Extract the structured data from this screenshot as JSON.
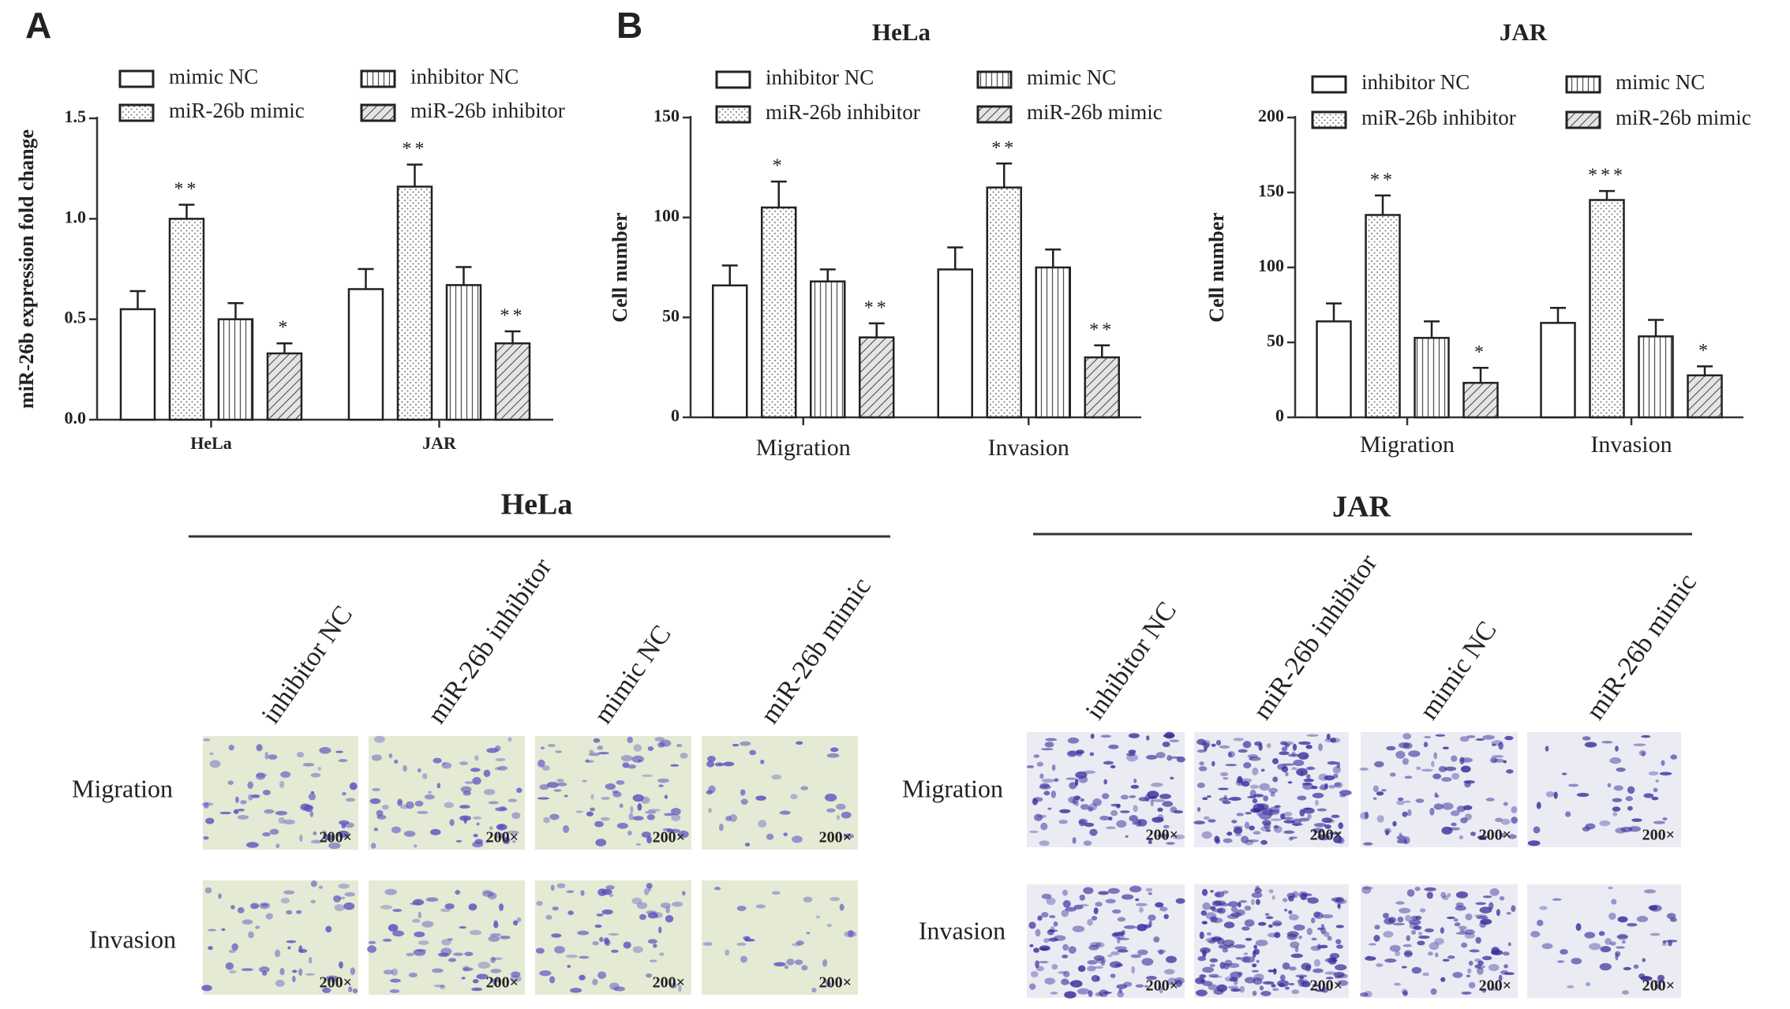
{
  "chart_data": [
    {
      "type": "bar",
      "panel": "A",
      "ylabel": "miR-26b expression fold change",
      "categories": [
        "HeLa",
        "JAR"
      ],
      "series": [
        {
          "name": "mimic NC",
          "pattern": "none",
          "color": "#222222",
          "values": [
            0.55,
            0.65
          ],
          "errors": [
            0.09,
            0.1
          ],
          "significance": [
            null,
            null
          ]
        },
        {
          "name": "miR-26b mimic",
          "pattern": "dots",
          "color": "#222222",
          "values": [
            1.0,
            1.16
          ],
          "errors": [
            0.07,
            0.11
          ],
          "significance": [
            "**",
            "**"
          ]
        },
        {
          "name": "inhibitor NC",
          "pattern": "vertical",
          "color": "#222222",
          "values": [
            0.5,
            0.67
          ],
          "errors": [
            0.08,
            0.09
          ],
          "significance": [
            null,
            null
          ]
        },
        {
          "name": "miR-26b inhibitor",
          "pattern": "diagonal",
          "color": "#222222",
          "values": [
            0.33,
            0.38
          ],
          "errors": [
            0.05,
            0.06
          ],
          "significance": [
            "*",
            "**"
          ]
        }
      ],
      "ylim": [
        0,
        1.5
      ],
      "yticks": [
        {
          "value": 0,
          "label": "0.0"
        },
        0.5,
        {
          "value": 1,
          "label": "1.0"
        },
        1.5
      ]
    },
    {
      "type": "bar",
      "panel": "B",
      "title": "HeLa",
      "ylabel": "Cell number",
      "categories": [
        "Migration",
        "Invasion"
      ],
      "series": [
        {
          "name": "inhibitor NC",
          "pattern": "none",
          "color": "#222222",
          "values": [
            66,
            74
          ],
          "errors": [
            10,
            11
          ],
          "significance": [
            null,
            null
          ]
        },
        {
          "name": "miR-26b inhibitor",
          "pattern": "dots",
          "color": "#222222",
          "values": [
            105,
            115
          ],
          "errors": [
            13,
            12
          ],
          "significance": [
            "*",
            "**"
          ]
        },
        {
          "name": "mimic NC",
          "pattern": "vertical",
          "color": "#222222",
          "values": [
            68,
            75
          ],
          "errors": [
            6,
            9
          ],
          "significance": [
            null,
            null
          ]
        },
        {
          "name": "miR-26b mimic",
          "pattern": "diagonal",
          "color": "#222222",
          "values": [
            40,
            30
          ],
          "errors": [
            7,
            6
          ],
          "significance": [
            "**",
            "**"
          ]
        }
      ],
      "ylim": [
        0,
        150
      ],
      "yticks": [
        0,
        50,
        100,
        150
      ]
    },
    {
      "type": "bar",
      "title": "JAR",
      "ylabel": "Cell number",
      "categories": [
        "Migration",
        "Invasion"
      ],
      "series": [
        {
          "name": "inhibitor NC",
          "pattern": "none",
          "color": "#222222",
          "values": [
            64,
            63
          ],
          "errors": [
            12,
            10
          ],
          "significance": [
            null,
            null
          ]
        },
        {
          "name": "miR-26b inhibitor",
          "pattern": "dots",
          "color": "#222222",
          "values": [
            135,
            145
          ],
          "errors": [
            13,
            6
          ],
          "significance": [
            "**",
            "***"
          ]
        },
        {
          "name": "mimic NC",
          "pattern": "vertical",
          "color": "#222222",
          "values": [
            53,
            54
          ],
          "errors": [
            11,
            11
          ],
          "significance": [
            null,
            null
          ]
        },
        {
          "name": "miR-26b mimic",
          "pattern": "diagonal",
          "color": "#222222",
          "values": [
            23,
            28
          ],
          "errors": [
            10,
            6
          ],
          "significance": [
            "*",
            "*"
          ]
        }
      ],
      "ylim": [
        0,
        200
      ],
      "yticks": [
        0,
        50,
        100,
        150,
        200
      ]
    }
  ],
  "micrographs": [
    {
      "title": "HeLa",
      "columns": [
        "inhibitor NC",
        "miR-26b inhibitor",
        "mimic NC",
        "miR-26b mimic"
      ],
      "rows": [
        "Migration",
        "Invasion"
      ]
    },
    {
      "title": "JAR",
      "columns": [
        "inhibitor NC",
        "miR-26b inhibitor",
        "mimic NC",
        "miR-26b mimic"
      ],
      "rows": [
        "Migration",
        "Invasion"
      ]
    }
  ],
  "magnification": "200×"
}
